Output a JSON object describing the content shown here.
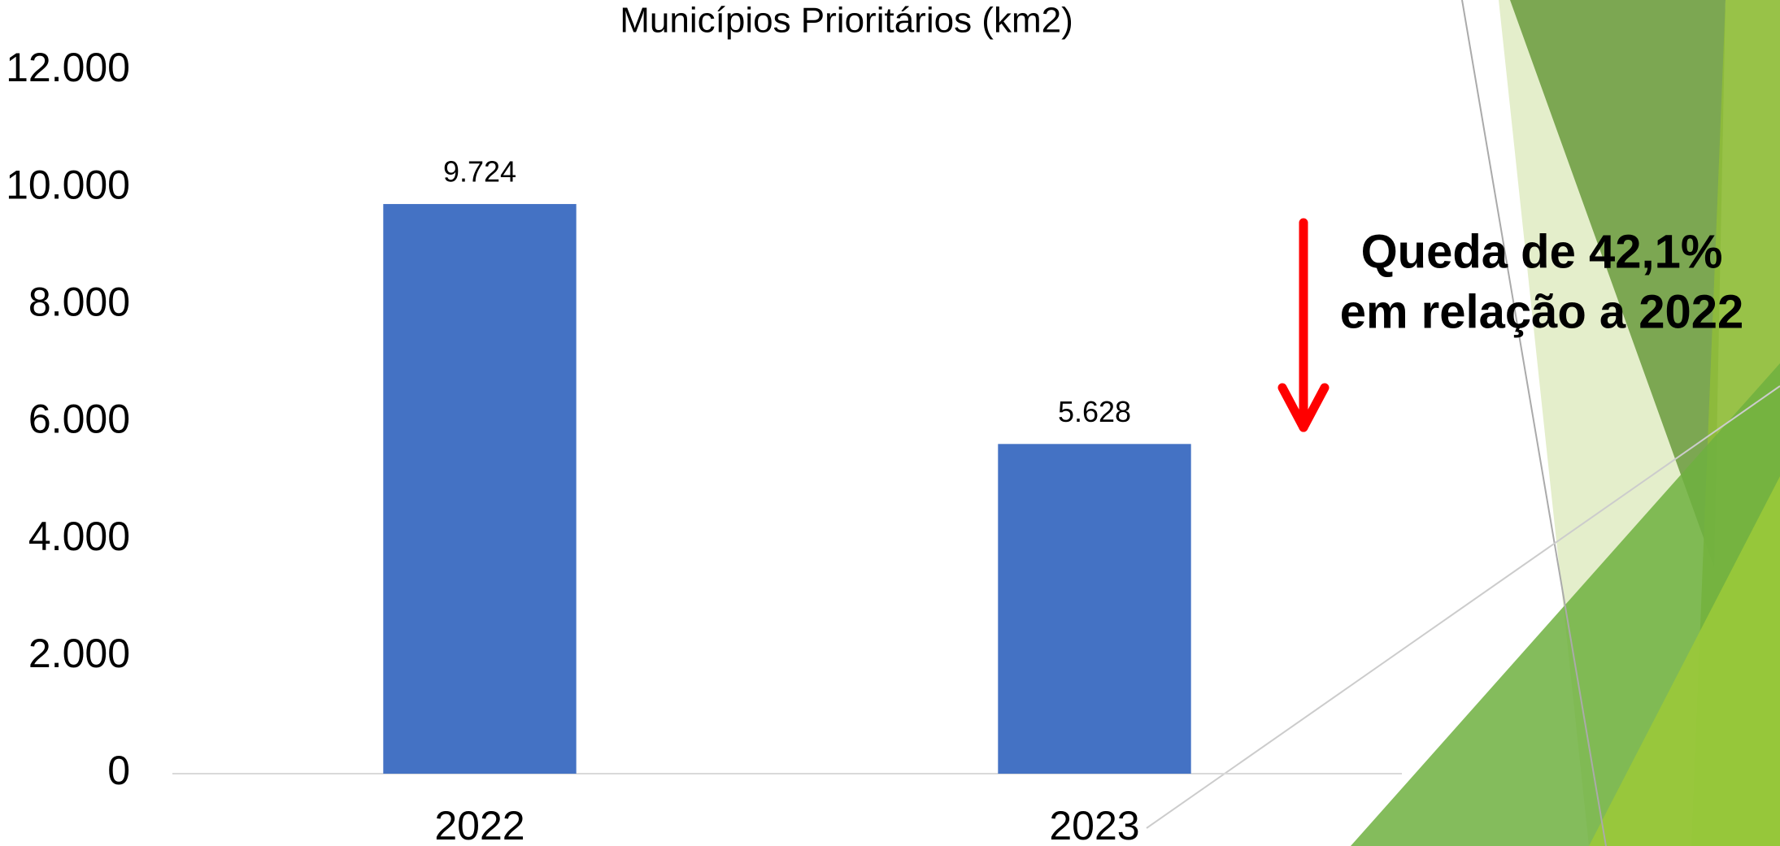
{
  "chart_data": {
    "type": "bar",
    "title": "Municípios Prioritários (km2)",
    "categories": [
      "2022",
      "2023"
    ],
    "values": [
      9724,
      5628
    ],
    "value_labels": [
      "9.724",
      "5.628"
    ],
    "color": "#4472c4",
    "ylim": [
      0,
      12000
    ],
    "yticks": [
      0,
      {
        "value": 2000,
        "label": "2.000"
      },
      {
        "value": 4000,
        "label": "4.000"
      },
      {
        "value": 6000,
        "label": "6.000"
      },
      {
        "value": 8000,
        "label": "8.000"
      },
      {
        "value": 10000,
        "label": "10.000"
      },
      {
        "value": 12000,
        "label": "12.000"
      }
    ],
    "grid": false,
    "annotations": [
      "Queda de 42,1%",
      "em relação a 2022"
    ]
  }
}
